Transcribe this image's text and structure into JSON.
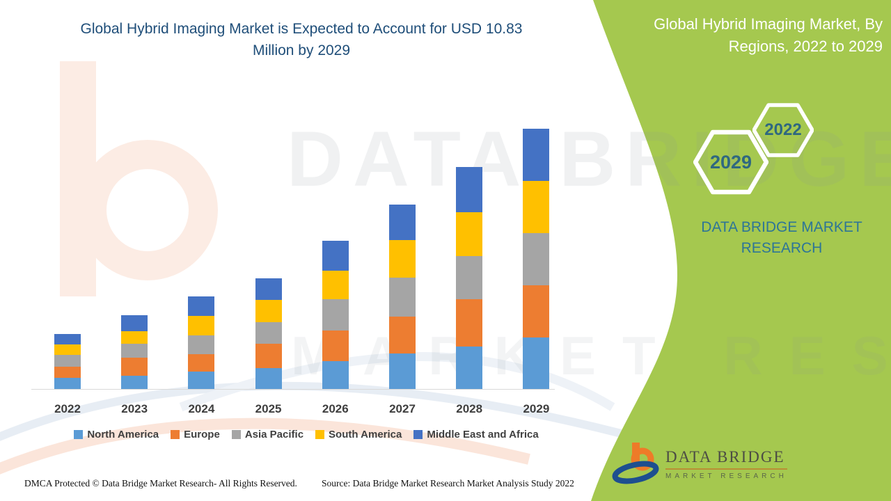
{
  "title": "Global Hybrid Imaging Market is Expected to Account for USD 10.83 Million by 2029",
  "chart_data": {
    "type": "bar",
    "stacked": true,
    "title": "Global Hybrid Imaging Market is Expected to Account for USD 10.83 Million by 2029",
    "unit": "USD Million",
    "categories": [
      "2022",
      "2023",
      "2024",
      "2025",
      "2026",
      "2027",
      "2028",
      "2029"
    ],
    "series": [
      {
        "name": "North America",
        "color": "#5b9bd5",
        "values": [
          0.49,
          0.58,
          0.75,
          0.9,
          1.18,
          1.5,
          1.79,
          2.17
        ]
      },
      {
        "name": "Europe",
        "color": "#ed7d31",
        "values": [
          0.46,
          0.75,
          0.72,
          1.01,
          1.27,
          1.53,
          1.96,
          2.17
        ]
      },
      {
        "name": "Asia Pacific",
        "color": "#a5a5a5",
        "values": [
          0.49,
          0.58,
          0.78,
          0.9,
          1.3,
          1.62,
          1.79,
          2.17
        ]
      },
      {
        "name": "South America",
        "color": "#ffc000",
        "values": [
          0.43,
          0.52,
          0.81,
          0.92,
          1.18,
          1.56,
          1.82,
          2.16
        ]
      },
      {
        "name": "Middle East and Africa",
        "color": "#4472c4",
        "values": [
          0.43,
          0.66,
          0.81,
          0.9,
          1.24,
          1.47,
          1.88,
          2.16
        ]
      }
    ],
    "totals": [
      2.3,
      3.09,
      3.87,
      4.63,
      6.17,
      7.68,
      9.24,
      10.83
    ],
    "xlabel": "",
    "ylabel": "",
    "ylim": [
      0,
      10.83
    ],
    "y_axis_visible": false,
    "grid": false,
    "legend_position": "bottom",
    "values_estimated_from_pixels": true
  },
  "side_panel": {
    "title": "Global Hybrid Imaging Market, By Regions, 2022 to 2029",
    "hexagons": {
      "small": "2022",
      "large": "2029"
    },
    "brand_text": "DATA BRIDGE MARKET RESEARCH"
  },
  "logo": {
    "name": "DATA BRIDGE",
    "tagline": "MARKET RESEARCH"
  },
  "watermark": {
    "line1": "DATA BRIDGE",
    "line2": "MARKET RESEARCH"
  },
  "footer": {
    "dmca": "DMCA Protected © Data Bridge Market Research- All Rights Reserved.",
    "source": "Source: Data Bridge Market Research Market Analysis Study 2022"
  },
  "colors": {
    "title_blue": "#1f4e79",
    "panel_green": "#a5c84f",
    "hex_label": "#2f6880",
    "brand_teal": "#2d7597",
    "axis_label": "#3f3f3f",
    "axis_line": "#d9d9d9"
  }
}
